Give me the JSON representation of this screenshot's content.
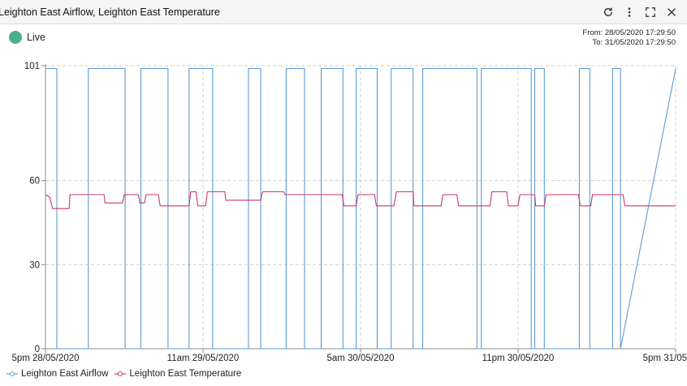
{
  "window": {
    "title": "Leighton East Airflow, Leighton East Temperature",
    "icons": [
      "refresh-icon",
      "more-vertical-icon",
      "fullscreen-icon",
      "close-icon"
    ]
  },
  "status": {
    "live_label": "Live",
    "live_color": "#4caf8d"
  },
  "time_range": {
    "from": "From: 28/05/2020 17:29:50",
    "to": "To: 31/05/2020 17:29:50"
  },
  "chart_data": {
    "type": "line",
    "y_ticks": [
      "101",
      "60",
      "30",
      "0"
    ],
    "ylim": [
      0,
      101
    ],
    "x_ticks": [
      "5pm 28/05/2020",
      "11am 29/05/2020",
      "5am 30/05/2020",
      "11pm 30/05/2020",
      "5pm 31/05"
    ],
    "x_tick_hours": [
      0,
      18,
      36,
      54,
      72
    ],
    "x_unit": "hours since 5pm 28/05/2020",
    "xlim": [
      0,
      72
    ],
    "grid": true,
    "legend_position": "bottom-left",
    "series": [
      {
        "name": "Leighton East Airflow",
        "color": "#5b9bd5",
        "x": [
          0,
          1.3,
          1.3,
          4.9,
          4.9,
          9.1,
          9.1,
          10.9,
          10.9,
          14.0,
          14.0,
          16.4,
          16.4,
          19.1,
          19.1,
          23.2,
          23.2,
          24.6,
          24.6,
          27.5,
          27.5,
          29.6,
          29.6,
          31.5,
          31.5,
          34.0,
          34.0,
          35.5,
          35.5,
          37.9,
          37.9,
          39.5,
          39.5,
          42.0,
          42.0,
          43.1,
          43.1,
          49.3,
          49.3,
          49.8,
          49.8,
          55.5,
          55.5,
          55.9,
          55.9,
          57.0,
          57.0,
          61.0,
          61.0,
          62.2,
          62.2,
          64.8,
          64.8,
          65.7,
          65.7,
          72
        ],
        "y": [
          100,
          100,
          0,
          0,
          100,
          100,
          0,
          0,
          100,
          100,
          0,
          0,
          100,
          100,
          0,
          0,
          100,
          100,
          0,
          0,
          100,
          100,
          0,
          0,
          100,
          100,
          0,
          0,
          100,
          100,
          0,
          0,
          100,
          100,
          0,
          0,
          100,
          100,
          0,
          0,
          100,
          100,
          0,
          0,
          100,
          100,
          0,
          0,
          100,
          100,
          0,
          0,
          100,
          100,
          0,
          100
        ]
      },
      {
        "name": "Leighton East Temperature",
        "color": "#d1356b",
        "x": [
          0,
          0.5,
          0.8,
          2.7,
          2.8,
          6.7,
          6.8,
          8.8,
          9.0,
          10.6,
          10.8,
          11.3,
          11.5,
          12.9,
          13.1,
          16.4,
          16.6,
          17.2,
          17.4,
          18.3,
          18.5,
          20.5,
          20.6,
          24.6,
          24.8,
          27.2,
          27.4,
          33.9,
          34.1,
          35.5,
          35.7,
          37.6,
          37.8,
          39.8,
          40.1,
          42.0,
          42.1,
          45.2,
          45.4,
          47.0,
          47.2,
          50.8,
          51.0,
          52.7,
          52.9,
          54.0,
          54.2,
          55.9,
          56.0,
          57.0,
          57.2,
          60.9,
          61.1,
          62.3,
          62.5,
          66.0,
          66.2,
          72
        ],
        "y": [
          55,
          54,
          50,
          50,
          55,
          55,
          52,
          52,
          55,
          55,
          52,
          52,
          55,
          55,
          51,
          51,
          56,
          56,
          51,
          51,
          56,
          56,
          53,
          53,
          56,
          56,
          55,
          55,
          51,
          51,
          55,
          55,
          51,
          51,
          56,
          56,
          51,
          51,
          55,
          55,
          51,
          51,
          56,
          56,
          51,
          51,
          55,
          55,
          51,
          51,
          55,
          55,
          51,
          51,
          55,
          55,
          51,
          51
        ]
      }
    ]
  }
}
